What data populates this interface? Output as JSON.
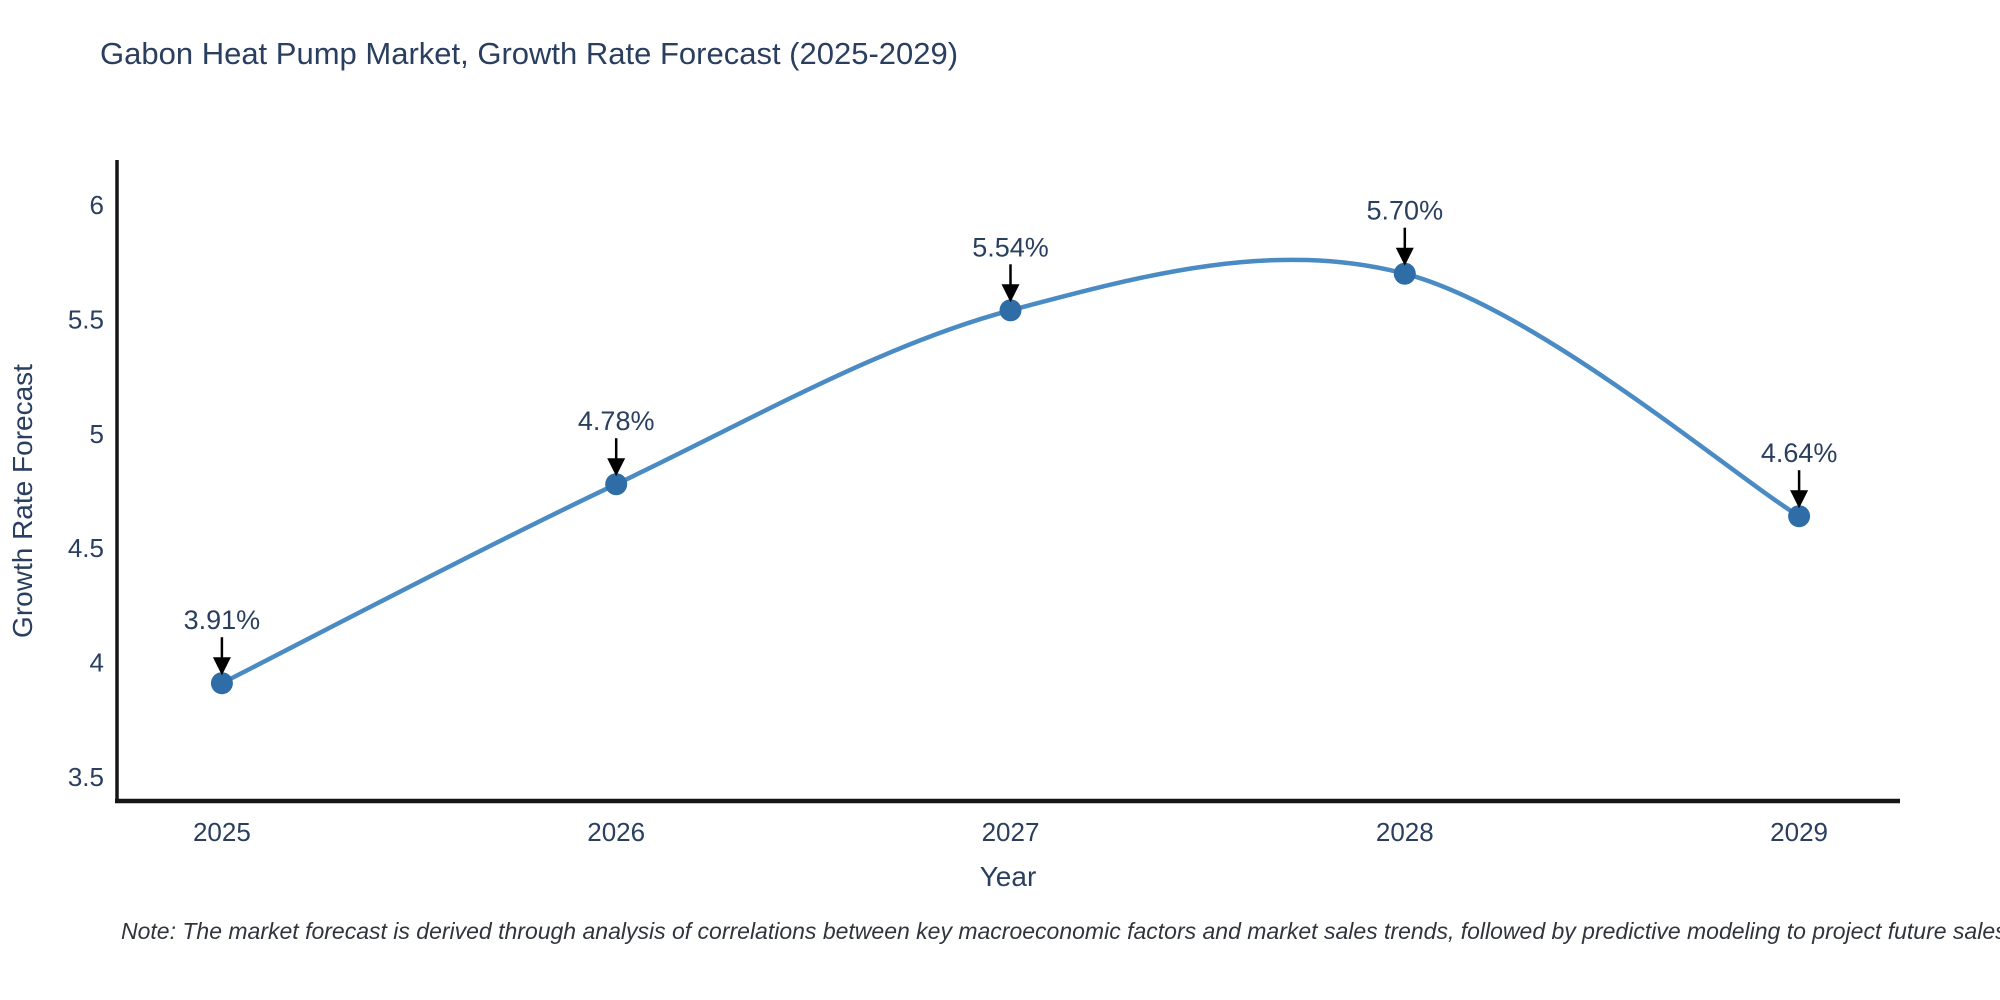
{
  "title": {
    "text": "Gabon Heat Pump Market, Growth Rate Forecast (2025-2029)",
    "color": "#2a3f5f"
  },
  "note": {
    "text": "Note: The market forecast is derived through analysis of correlations between key macroeconomic factors and market sales trends, followed by predictive modeling to project future sales"
  },
  "chart_data": {
    "type": "line",
    "title": "Gabon Heat Pump Market, Growth Rate Forecast (2025-2029)",
    "xlabel": "Year",
    "ylabel": "Growth Rate Forecast",
    "x": [
      2025,
      2026,
      2027,
      2028,
      2029
    ],
    "values": [
      3.91,
      4.78,
      5.54,
      5.7,
      4.64
    ],
    "point_labels": [
      "3.91%",
      "4.78%",
      "5.54%",
      "5.70%",
      "4.64%"
    ],
    "x_tick_labels": [
      "2025",
      "2026",
      "2027",
      "2028",
      "2029"
    ],
    "y_ticks": [
      3.5,
      4,
      4.5,
      5,
      5.5,
      6
    ],
    "y_tick_labels": [
      "3.5",
      "4",
      "4.5",
      "5",
      "5.5",
      "6"
    ],
    "xlim": [
      2024.734,
      2029.256
    ],
    "ylim": [
      3.395,
      6.197
    ],
    "grid": false,
    "legend": "none",
    "line_shape": "spline",
    "colors": {
      "line": "#4a8bc4",
      "marker": "#2e6da6",
      "axis": "#161616",
      "tick_label": "#2a3f5f",
      "point_label": "#2a3f5f",
      "arrow": "#000000"
    }
  }
}
